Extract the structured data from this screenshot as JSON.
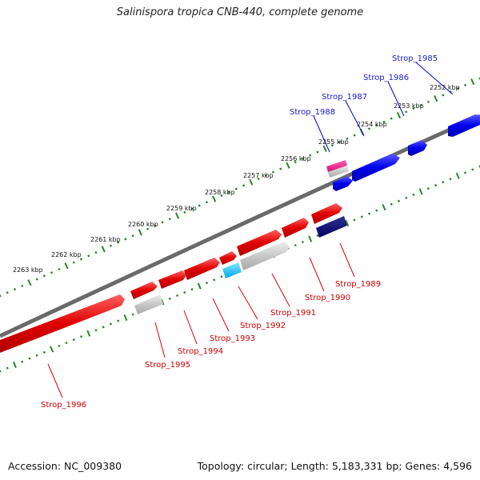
{
  "title": "Salinispora tropica CNB-440, complete genome",
  "accession": "Accession: NC_009380",
  "summary": "Topology: circular; Length: 5,183,331 bp; Genes: 4,596",
  "colors": {
    "forward": "#ee1111",
    "reverse": "#1111ee",
    "backbone": "#808080",
    "tick": "#228822"
  },
  "tick_labels": [
    "2252 kbp",
    "2253 kbp",
    "2254 kbp",
    "2255 kbp",
    "2256 kbp",
    "2257 kbp",
    "2258 kbp",
    "2259 kbp",
    "2260 kbp",
    "2261 kbp",
    "2262 kbp",
    "2263 kbp"
  ],
  "genes_top": [
    "Strop_1985",
    "Strop_1986",
    "Strop_1987",
    "Strop_1988"
  ],
  "genes_bottom": [
    "Strop_1989",
    "Strop_1990",
    "Strop_1991",
    "Strop_1992",
    "Strop_1993",
    "Strop_1994",
    "Strop_1995",
    "Strop_1996"
  ]
}
